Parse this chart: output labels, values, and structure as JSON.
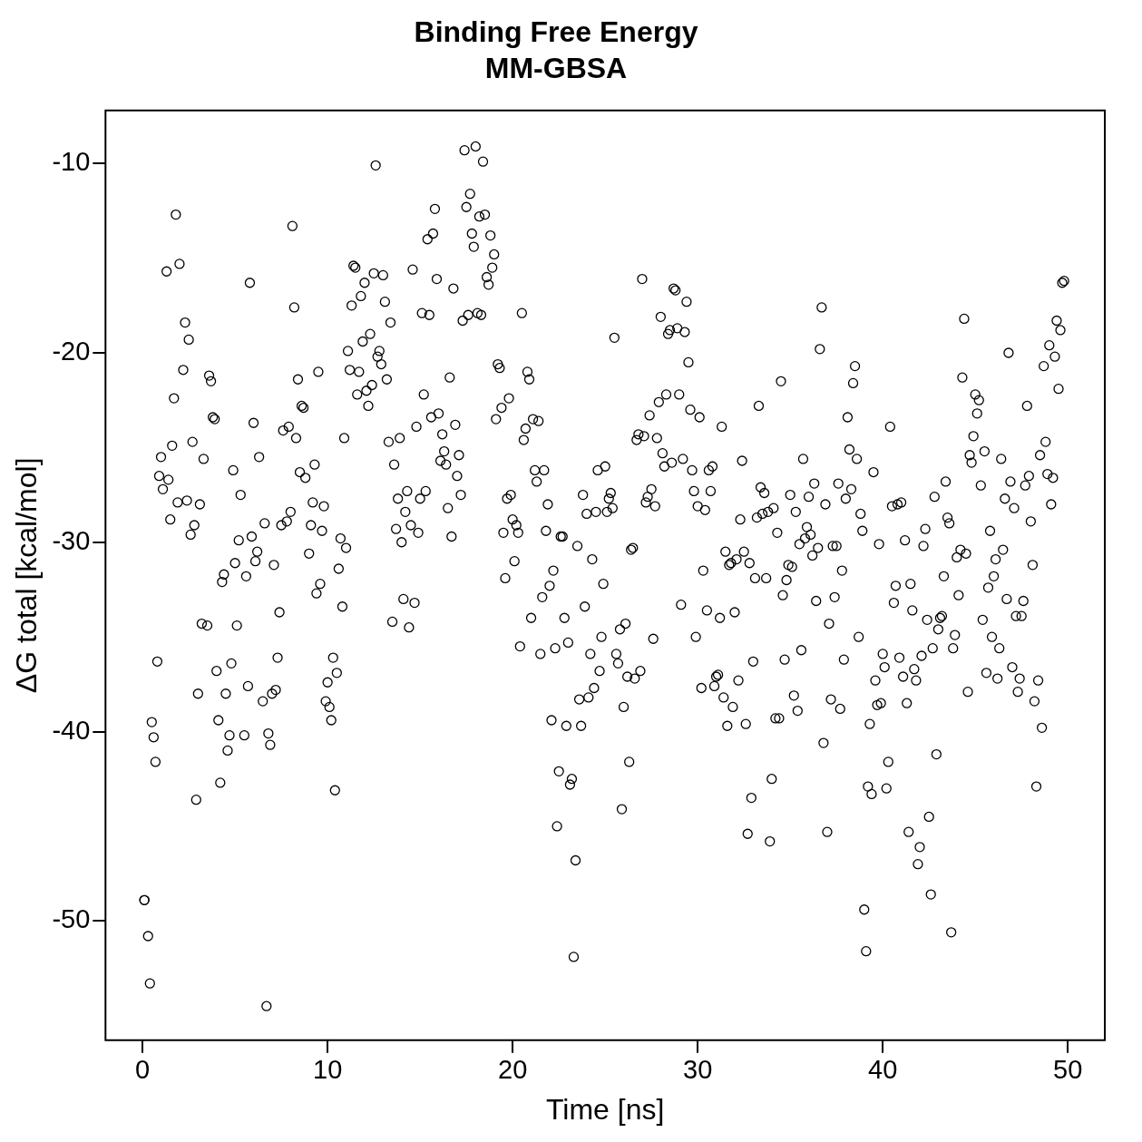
{
  "chart_data": {
    "type": "scatter",
    "title": "Binding Free Energy",
    "subtitle": "MM-GBSA",
    "xlabel": "Time [ns]",
    "ylabel": "ΔG total [kcal/mol]",
    "xlim": [
      -2,
      52
    ],
    "ylim": [
      -56.3,
      -7.2
    ],
    "xticks": [
      0,
      10,
      20,
      30,
      40,
      50
    ],
    "yticks": [
      -50,
      -40,
      -30,
      -20,
      -10
    ],
    "grid": false,
    "legend": false,
    "marker": "circle",
    "series": [
      {
        "color": "#000000",
        "x": [
          0.1,
          0.1,
          0.3,
          0.4,
          0.5,
          0.6,
          0.7,
          0.8,
          0.9,
          1.0,
          1.1,
          1.3,
          1.4,
          1.5,
          1.6,
          1.7,
          1.8,
          1.9,
          2.0,
          2.2,
          2.3,
          2.4,
          2.5,
          2.6,
          2.7,
          2.8,
          2.9,
          3.0,
          3.1,
          3.2,
          3.3,
          3.5,
          3.6,
          3.7,
          3.8,
          3.9,
          4.0,
          4.1,
          4.2,
          4.3,
          4.4,
          4.5,
          4.6,
          4.7,
          4.8,
          4.9,
          5.0,
          5.1,
          5.2,
          5.3,
          5.5,
          5.6,
          5.7,
          5.8,
          5.9,
          6.0,
          6.1,
          6.2,
          6.3,
          6.5,
          6.6,
          6.8,
          6.9,
          6.7,
          7.0,
          7.1,
          7.2,
          7.3,
          7.4,
          7.5,
          7.6,
          7.8,
          7.9,
          8.0,
          8.1,
          8.2,
          8.3,
          8.4,
          8.5,
          8.6,
          8.7,
          8.8,
          9.0,
          9.1,
          9.2,
          9.3,
          9.4,
          9.5,
          9.6,
          9.7,
          9.8,
          9.9,
          10.0,
          10.1,
          10.2,
          10.3,
          10.4,
          10.5,
          10.6,
          10.7,
          10.8,
          10.9,
          11.0,
          11.1,
          11.2,
          11.3,
          11.4,
          11.5,
          11.6,
          11.7,
          11.8,
          11.9,
          12.0,
          12.1,
          12.2,
          12.3,
          12.4,
          12.5,
          12.6,
          12.7,
          12.8,
          12.9,
          13.0,
          13.1,
          13.2,
          13.3,
          13.4,
          13.5,
          13.6,
          13.7,
          13.8,
          13.9,
          14.0,
          14.1,
          14.2,
          14.3,
          14.4,
          14.5,
          14.6,
          14.7,
          14.8,
          14.9,
          15.0,
          15.1,
          15.2,
          15.3,
          15.4,
          15.5,
          15.6,
          15.7,
          15.8,
          15.9,
          16.0,
          16.1,
          16.2,
          16.3,
          16.4,
          16.5,
          16.6,
          16.7,
          16.8,
          16.9,
          17.0,
          17.1,
          17.2,
          17.3,
          17.4,
          17.5,
          17.6,
          17.7,
          17.8,
          17.9,
          18.0,
          18.1,
          18.2,
          18.3,
          18.4,
          18.5,
          18.6,
          18.7,
          18.8,
          18.9,
          19.0,
          19.1,
          19.2,
          19.3,
          19.4,
          19.5,
          19.6,
          19.7,
          19.8,
          19.9,
          20.0,
          20.1,
          20.2,
          20.3,
          20.4,
          20.5,
          20.6,
          20.7,
          20.8,
          20.9,
          21.0,
          21.1,
          21.2,
          21.3,
          21.4,
          21.5,
          21.6,
          21.7,
          21.8,
          21.9,
          22.0,
          22.1,
          22.2,
          22.3,
          22.4,
          22.5,
          22.6,
          22.7,
          22.8,
          22.9,
          23.0,
          23.1,
          23.2,
          23.3,
          23.4,
          23.5,
          23.6,
          23.7,
          23.8,
          23.9,
          24.0,
          24.1,
          24.2,
          24.3,
          24.4,
          24.5,
          24.6,
          24.7,
          24.8,
          24.9,
          25.0,
          25.1,
          25.2,
          25.3,
          25.4,
          25.5,
          25.6,
          25.7,
          25.8,
          25.9,
          26.0,
          26.1,
          26.2,
          26.3,
          26.4,
          26.5,
          26.6,
          26.7,
          26.8,
          26.9,
          27.0,
          27.1,
          27.2,
          27.3,
          27.4,
          27.5,
          27.6,
          27.7,
          27.8,
          27.9,
          28.0,
          28.1,
          28.2,
          28.3,
          28.4,
          28.5,
          28.6,
          28.7,
          28.8,
          28.9,
          29.0,
          29.1,
          29.2,
          29.3,
          29.4,
          29.5,
          29.6,
          29.7,
          29.8,
          29.9,
          30.0,
          30.1,
          30.2,
          30.3,
          30.4,
          30.5,
          30.6,
          30.7,
          30.8,
          30.9,
          31.0,
          31.1,
          31.2,
          31.3,
          31.4,
          31.5,
          31.6,
          31.7,
          31.8,
          31.9,
          32.0,
          32.1,
          32.2,
          32.3,
          32.4,
          32.5,
          32.6,
          32.7,
          32.8,
          32.9,
          33.0,
          33.1,
          33.2,
          33.3,
          33.4,
          33.5,
          33.6,
          33.7,
          33.8,
          33.9,
          34.0,
          34.1,
          34.2,
          34.3,
          34.4,
          34.5,
          34.6,
          34.7,
          34.8,
          34.9,
          35.0,
          35.1,
          35.2,
          35.3,
          35.4,
          35.5,
          35.6,
          35.7,
          35.8,
          35.9,
          36.0,
          36.1,
          36.2,
          36.3,
          36.4,
          36.5,
          36.6,
          36.7,
          36.8,
          36.9,
          37.0,
          37.1,
          37.2,
          37.3,
          37.4,
          37.5,
          37.6,
          37.7,
          37.8,
          37.9,
          38.0,
          38.1,
          38.2,
          38.3,
          38.4,
          38.5,
          38.6,
          38.7,
          38.8,
          38.9,
          39.0,
          39.1,
          39.2,
          39.3,
          39.4,
          39.5,
          39.6,
          39.7,
          39.8,
          39.9,
          40.0,
          40.1,
          40.2,
          40.3,
          40.4,
          40.5,
          40.6,
          40.7,
          40.8,
          40.9,
          41.0,
          41.1,
          41.2,
          41.3,
          41.4,
          41.5,
          41.6,
          41.7,
          41.8,
          41.9,
          42.0,
          42.1,
          42.2,
          42.3,
          42.4,
          42.5,
          42.6,
          42.7,
          42.8,
          42.9,
          43.0,
          43.1,
          43.2,
          43.3,
          43.4,
          43.5,
          43.6,
          43.7,
          43.8,
          43.9,
          44.0,
          44.1,
          44.2,
          44.3,
          44.4,
          44.5,
          44.6,
          44.7,
          44.8,
          44.9,
          45.0,
          45.1,
          45.2,
          45.3,
          45.4,
          45.5,
          45.6,
          45.7,
          45.8,
          45.9,
          46.0,
          46.1,
          46.2,
          46.3,
          46.4,
          46.5,
          46.6,
          46.7,
          46.8,
          46.9,
          47.0,
          47.1,
          47.2,
          47.3,
          47.4,
          47.5,
          47.6,
          47.7,
          47.8,
          47.9,
          48.0,
          48.1,
          48.2,
          48.3,
          48.4,
          48.5,
          48.6,
          48.7,
          48.8,
          48.9,
          49.0,
          49.1,
          49.2,
          49.3,
          49.4,
          49.5,
          49.6,
          49.7,
          49.8
        ],
        "values": [
          -48.9,
          -48.9,
          -50.8,
          -53.3,
          -39.5,
          -40.3,
          -41.6,
          -36.3,
          -26.5,
          -25.5,
          -27.2,
          -15.7,
          -26.7,
          -28.8,
          -24.9,
          -22.4,
          -12.7,
          -27.9,
          -15.3,
          -20.9,
          -18.4,
          -27.8,
          -19.3,
          -29.6,
          -24.7,
          -29.1,
          -43.6,
          -38.0,
          -28.0,
          -34.3,
          -25.6,
          -34.4,
          -21.2,
          -21.5,
          -23.4,
          -23.5,
          -36.8,
          -39.4,
          -42.7,
          -32.1,
          -31.7,
          -38.0,
          -41.0,
          -40.2,
          -36.4,
          -26.2,
          -31.1,
          -34.4,
          -29.9,
          -27.5,
          -40.2,
          -31.8,
          -37.6,
          -16.3,
          -29.7,
          -23.7,
          -31.0,
          -30.5,
          -25.5,
          -38.4,
          -29.0,
          -40.1,
          -40.7,
          -54.5,
          -38.0,
          -31.2,
          -37.8,
          -36.1,
          -33.7,
          -29.1,
          -24.1,
          -28.9,
          -23.9,
          -28.4,
          -13.3,
          -17.6,
          -24.5,
          -21.4,
          -26.3,
          -22.8,
          -22.9,
          -26.6,
          -30.6,
          -29.1,
          -27.9,
          -25.9,
          -32.7,
          -21.0,
          -32.2,
          -29.4,
          -28.1,
          -38.4,
          -37.4,
          -38.7,
          -39.4,
          -36.1,
          -43.1,
          -36.9,
          -31.4,
          -29.8,
          -33.4,
          -24.5,
          -30.3,
          -19.9,
          -20.9,
          -17.5,
          -15.4,
          -15.5,
          -22.2,
          -21.0,
          -17.0,
          -19.4,
          -16.3,
          -22.0,
          -22.8,
          -19.0,
          -21.7,
          -15.8,
          -10.1,
          -20.2,
          -19.9,
          -20.6,
          -15.9,
          -17.3,
          -21.4,
          -24.7,
          -18.4,
          -34.2,
          -25.9,
          -29.3,
          -27.7,
          -24.5,
          -30.0,
          -33.0,
          -28.4,
          -27.3,
          -34.5,
          -29.1,
          -15.6,
          -33.2,
          -23.9,
          -29.5,
          -27.7,
          -17.9,
          -22.2,
          -27.3,
          -14.0,
          -18.0,
          -23.4,
          -13.7,
          -12.4,
          -16.1,
          -23.2,
          -25.7,
          -24.3,
          -25.2,
          -25.9,
          -28.2,
          -21.3,
          -29.7,
          -16.6,
          -23.8,
          -26.5,
          -25.4,
          -27.5,
          -18.3,
          -9.3,
          -12.3,
          -18.0,
          -11.6,
          -13.7,
          -14.4,
          -9.1,
          -17.9,
          -12.8,
          -18.0,
          -9.9,
          -12.7,
          -16.0,
          -16.4,
          -13.8,
          -15.5,
          -14.8,
          -23.5,
          -20.6,
          -20.8,
          -22.9,
          -29.5,
          -31.9,
          -27.7,
          -22.4,
          -27.5,
          -28.8,
          -31.0,
          -29.1,
          -29.5,
          -35.5,
          -17.9,
          -24.6,
          -24.0,
          -21.0,
          -21.4,
          -34.0,
          -23.5,
          -26.2,
          -26.8,
          -23.6,
          -35.9,
          -32.9,
          -26.2,
          -29.4,
          -28.0,
          -32.3,
          -39.4,
          -31.5,
          -35.6,
          -45.0,
          -42.1,
          -29.7,
          -29.7,
          -34.0,
          -39.7,
          -35.3,
          -42.8,
          -42.5,
          -51.9,
          -46.8,
          -30.2,
          -38.3,
          -39.7,
          -27.5,
          -33.4,
          -28.5,
          -38.2,
          -35.9,
          -30.9,
          -37.7,
          -28.4,
          -26.2,
          -36.8,
          -35.0,
          -32.2,
          -26.0,
          -28.4,
          -27.7,
          -27.4,
          -28.2,
          -19.2,
          -35.9,
          -36.4,
          -34.6,
          -44.1,
          -38.7,
          -34.3,
          -37.1,
          -41.6,
          -30.4,
          -30.3,
          -37.2,
          -24.6,
          -24.3,
          -36.8,
          -16.1,
          -24.4,
          -27.9,
          -27.6,
          -23.3,
          -27.2,
          -35.1,
          -28.1,
          -24.5,
          -22.6,
          -18.1,
          -25.3,
          -26.0,
          -22.2,
          -19.0,
          -18.8,
          -25.8,
          -16.6,
          -16.7,
          -18.7,
          -22.2,
          -33.3,
          -25.6,
          -18.9,
          -17.3,
          -20.5,
          -23.0,
          -26.2,
          -27.3,
          -35.0,
          -28.1,
          -23.4,
          -37.7,
          -31.5,
          -28.3,
          -33.6,
          -26.2,
          -27.3,
          -26.0,
          -37.6,
          -37.1,
          -37.0,
          -34.0,
          -23.9,
          -38.2,
          -30.5,
          -39.7,
          -31.2,
          -31.1,
          -38.7,
          -33.7,
          -30.9,
          -37.3,
          -28.8,
          -25.7,
          -30.5,
          -39.6,
          -45.4,
          -31.1,
          -43.5,
          -36.3,
          -31.9,
          -28.7,
          -22.8,
          -27.1,
          -28.5,
          -27.4,
          -31.9,
          -28.4,
          -45.8,
          -42.5,
          -28.2,
          -39.3,
          -29.5,
          -39.3,
          -21.5,
          -32.8,
          -36.2,
          -32.0,
          -31.2,
          -27.5,
          -31.3,
          -38.1,
          -28.4,
          -38.9,
          -30.1,
          -35.7,
          -25.6,
          -29.8,
          -29.2,
          -27.6,
          -29.6,
          -30.7,
          -26.9,
          -33.1,
          -30.3,
          -19.8,
          -17.6,
          -40.6,
          -28.0,
          -45.3,
          -34.3,
          -38.3,
          -30.2,
          -32.9,
          -30.2,
          -26.9,
          -38.8,
          -31.5,
          -36.2,
          -27.7,
          -23.4,
          -25.1,
          -27.2,
          -21.6,
          -20.7,
          -25.6,
          -35.0,
          -28.5,
          -29.4,
          -49.4,
          -51.6,
          -42.9,
          -39.6,
          -43.3,
          -26.3,
          -37.3,
          -38.6,
          -30.1,
          -38.5,
          -35.9,
          -36.6,
          -43.0,
          -41.6,
          -23.9,
          -28.1,
          -33.2,
          -32.3,
          -28.0,
          -36.1,
          -27.9,
          -37.1,
          -29.9,
          -38.5,
          -45.3,
          -32.2,
          -33.6,
          -36.7,
          -37.3,
          -47.0,
          -46.1,
          -36.0,
          -30.2,
          -29.3,
          -34.1,
          -44.5,
          -48.6,
          -35.6,
          -27.6,
          -41.2,
          -34.6,
          -34.0,
          -33.9,
          -31.8,
          -26.8,
          -28.7,
          -29.0,
          -50.6,
          -35.6,
          -34.9,
          -30.8,
          -32.8,
          -30.4,
          -21.3,
          -18.2,
          -30.6,
          -37.9,
          -25.4,
          -25.8,
          -24.4,
          -22.2,
          -23.2,
          -22.5,
          -27.0,
          -34.1,
          -25.2,
          -36.9,
          -32.4,
          -29.4,
          -35.0,
          -31.8,
          -30.9,
          -37.2,
          -35.6,
          -25.6,
          -30.4,
          -27.7,
          -33.0,
          -20.0,
          -26.8,
          -36.6,
          -28.2,
          -33.9,
          -37.9,
          -37.2,
          -33.9,
          -33.1,
          -27.0,
          -22.8,
          -26.5,
          -28.9,
          -31.2,
          -38.4,
          -42.9,
          -37.3,
          -25.4,
          -39.8,
          -20.7,
          -24.7,
          -26.4,
          -19.6,
          -28.0,
          -26.6,
          -20.2,
          -18.3,
          -21.9,
          -18.8,
          -16.3,
          -16.2
        ]
      }
    ]
  }
}
